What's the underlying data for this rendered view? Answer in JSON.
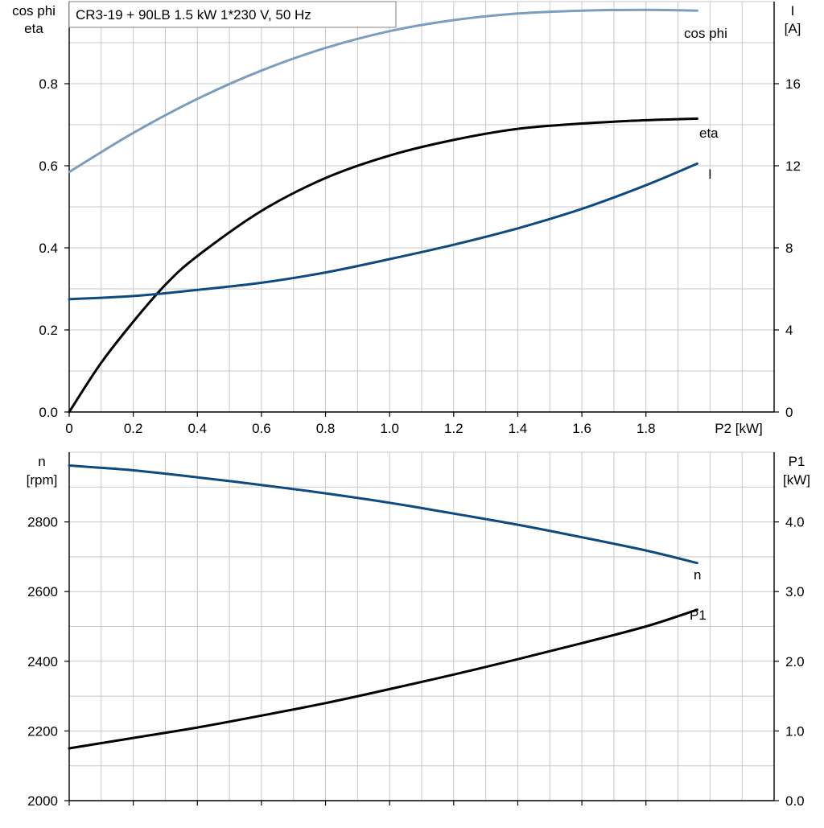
{
  "title": "CR3-19 + 90LB   1.5 kW   1*230 V, 50 Hz",
  "colors": {
    "cosphi": "#7b9ebf",
    "eta": "#000000",
    "current": "#0c4a80",
    "speed": "#0c4a80",
    "p1": "#000000",
    "grid": "#c8c8c8"
  },
  "chart_data": [
    {
      "type": "line",
      "xlabel": "P2 [kW]",
      "ylabel_left": [
        "cos phi",
        "eta"
      ],
      "ylabel_right": [
        "I",
        "[A]"
      ],
      "xlim": [
        0,
        2.2
      ],
      "ylim_left": [
        0,
        1.0
      ],
      "ylim_right": [
        0,
        20
      ],
      "x_ticks": [
        "0",
        "0.2",
        "0.4",
        "0.6",
        "0.8",
        "1.0",
        "1.2",
        "1.4",
        "1.6",
        "1.8"
      ],
      "y_ticks_left": [
        "0.0",
        "0.2",
        "0.4",
        "0.6",
        "0.8"
      ],
      "y_ticks_right": [
        "0",
        "4",
        "8",
        "12",
        "16"
      ],
      "grid": true,
      "series": [
        {
          "name": "cos phi",
          "axis": "left",
          "x": [
            0,
            0.2,
            0.4,
            0.6,
            0.8,
            1.0,
            1.2,
            1.4,
            1.6,
            1.8,
            1.96
          ],
          "y": [
            0.585,
            0.68,
            0.763,
            0.832,
            0.887,
            0.928,
            0.955,
            0.971,
            0.978,
            0.98,
            0.978
          ]
        },
        {
          "name": "eta",
          "axis": "left",
          "x": [
            0,
            0.1,
            0.2,
            0.3,
            0.4,
            0.6,
            0.8,
            1.0,
            1.2,
            1.4,
            1.6,
            1.8,
            1.96
          ],
          "y": [
            0.0,
            0.12,
            0.22,
            0.31,
            0.38,
            0.49,
            0.57,
            0.625,
            0.663,
            0.69,
            0.703,
            0.711,
            0.715
          ]
        },
        {
          "name": "I",
          "axis": "right",
          "x": [
            0,
            0.2,
            0.4,
            0.6,
            0.8,
            1.0,
            1.2,
            1.4,
            1.6,
            1.8,
            1.96
          ],
          "y": [
            5.5,
            5.65,
            5.95,
            6.3,
            6.8,
            7.45,
            8.15,
            8.95,
            9.9,
            11.05,
            12.1
          ]
        }
      ]
    },
    {
      "type": "line",
      "xlabel": "",
      "ylabel_left": [
        "n",
        "[rpm]"
      ],
      "ylabel_right": [
        "P1",
        "[kW]"
      ],
      "xlim": [
        0,
        2.2
      ],
      "ylim_left": [
        2000,
        3000
      ],
      "ylim_right": [
        0,
        5.0
      ],
      "y_ticks_left": [
        "2000",
        "2200",
        "2400",
        "2600",
        "2800"
      ],
      "y_ticks_right": [
        "0.0",
        "1.0",
        "2.0",
        "3.0",
        "4.0"
      ],
      "grid": true,
      "series": [
        {
          "name": "n",
          "axis": "left",
          "x": [
            0,
            0.2,
            0.4,
            0.6,
            0.8,
            1.0,
            1.2,
            1.4,
            1.6,
            1.8,
            1.96
          ],
          "y": [
            2962,
            2948,
            2928,
            2906,
            2882,
            2855,
            2824,
            2792,
            2756,
            2718,
            2682
          ]
        },
        {
          "name": "P1",
          "axis": "right",
          "x": [
            0,
            0.2,
            0.4,
            0.6,
            0.8,
            1.0,
            1.2,
            1.4,
            1.6,
            1.8,
            1.96
          ],
          "y": [
            0.75,
            0.9,
            1.05,
            1.22,
            1.4,
            1.6,
            1.81,
            2.03,
            2.26,
            2.5,
            2.74
          ]
        }
      ]
    }
  ]
}
